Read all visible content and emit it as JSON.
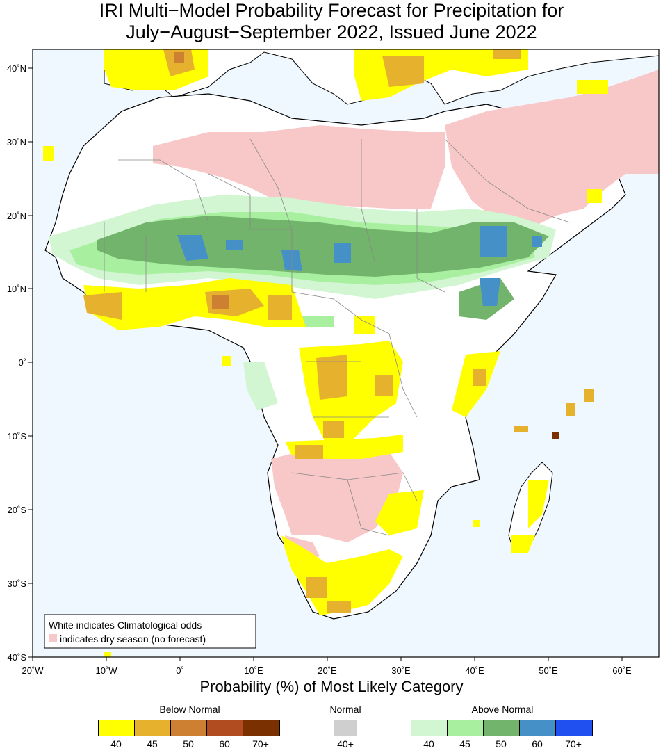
{
  "title_line1": "IRI Multi−Model Probability Forecast for Precipitation for",
  "title_line2": "July−August−September 2022, Issued June 2022",
  "axis": {
    "lat_labels": [
      "40˚N",
      "30˚N",
      "20˚N",
      "10˚N",
      "0˚",
      "10˚S",
      "20˚S",
      "30˚S",
      "40˚S"
    ],
    "lon_labels": [
      "20˚W",
      "10˚W",
      "0˚",
      "10˚E",
      "20˚E",
      "30˚E",
      "40˚E",
      "50˚E",
      "60˚E"
    ]
  },
  "note": {
    "line1": "White indicates Climatological odds",
    "line2": "indicates dry season (no forecast)"
  },
  "legend": {
    "title": "Probability (%) of Most Likely Category",
    "below": {
      "label": "Below Normal",
      "colors": [
        "#ffff00",
        "#e6b22e",
        "#cd7f32",
        "#b04c20",
        "#7a3000"
      ],
      "ticks": [
        "40",
        "45",
        "50",
        "60",
        "70+"
      ]
    },
    "normal": {
      "label": "Normal",
      "colors": [
        "#cfcfcf"
      ],
      "ticks": [
        "40+"
      ]
    },
    "above": {
      "label": "Above Normal",
      "colors": [
        "#d2f5d2",
        "#a8f0a0",
        "#72b46c",
        "#4690c8",
        "#2050f0"
      ],
      "ticks": [
        "40",
        "45",
        "50",
        "60",
        "70+"
      ]
    }
  },
  "colors": {
    "ocean": "#f0f8ff",
    "land": "#ffffff",
    "dry_season": "#f8c8c8"
  }
}
